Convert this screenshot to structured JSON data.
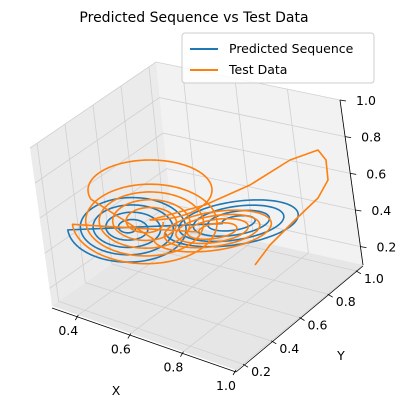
{
  "chart_data": {
    "type": "line",
    "projection": "3d",
    "title": "Predicted Sequence vs Test Data",
    "xlabel": "X",
    "ylabel": "Y",
    "zlabel": "",
    "xlim": [
      0.3,
      1.0
    ],
    "ylim": [
      0.15,
      1.05
    ],
    "zlim": [
      0.1,
      1.0
    ],
    "xticks": [
      "0.4",
      "0.6",
      "0.8",
      "1.0"
    ],
    "yticks": [
      "0.2",
      "0.4",
      "0.6",
      "0.8",
      "1.0"
    ],
    "zticks": [
      "0.2",
      "0.4",
      "0.6",
      "0.8",
      "1.0"
    ],
    "xtick_values": [
      0.4,
      0.6,
      0.8,
      1.0
    ],
    "ytick_values": [
      0.2,
      0.4,
      0.6,
      0.8,
      1.0
    ],
    "ztick_values": [
      0.2,
      0.4,
      0.6,
      0.8,
      1.0
    ],
    "grid": true,
    "legend": "upper right",
    "series": [
      {
        "name": "Predicted Sequence",
        "color": "#1f77b4",
        "shape": "lorenz-attractor double-lobe trajectory",
        "values": []
      },
      {
        "name": "Test Data",
        "color": "#ff7f0e",
        "shape": "lorenz-attractor double-lobe trajectory",
        "values": []
      }
    ]
  }
}
